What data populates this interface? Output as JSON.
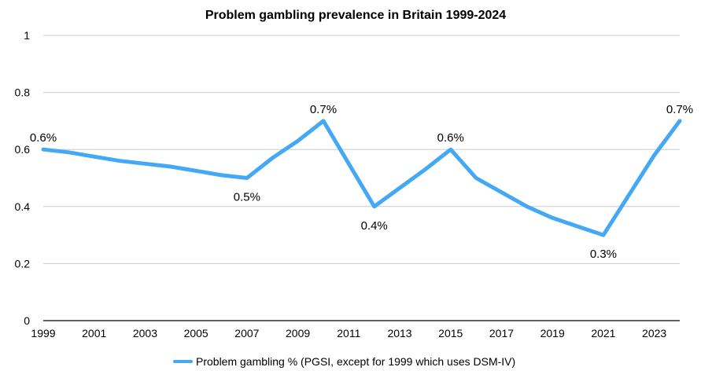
{
  "chart_data": {
    "type": "line",
    "title": "Problem gambling prevalence in Britain 1999-2024",
    "xlabel": "",
    "ylabel": "",
    "xlim": [
      1999,
      2024
    ],
    "ylim": [
      0,
      1
    ],
    "y_ticks": [
      "0",
      "0.2",
      "0.4",
      "0.6",
      "0.8",
      "1"
    ],
    "x_ticks": [
      "1999",
      "2001",
      "2003",
      "2005",
      "2007",
      "2009",
      "2011",
      "2013",
      "2015",
      "2017",
      "2019",
      "2021",
      "2023"
    ],
    "grid": true,
    "legend_position": "bottom",
    "series": [
      {
        "name": "Problem gambling % (PGSI, except for 1999 which uses DSM-IV)",
        "color": "#45a8f5",
        "x": [
          1999,
          2000,
          2001,
          2002,
          2003,
          2004,
          2005,
          2006,
          2007,
          2008,
          2009,
          2010,
          2011,
          2012,
          2013,
          2014,
          2015,
          2016,
          2017,
          2018,
          2019,
          2020,
          2021,
          2022,
          2023,
          2024
        ],
        "y": [
          0.6,
          0.59,
          0.575,
          0.56,
          0.55,
          0.54,
          0.525,
          0.51,
          0.5,
          0.57,
          0.63,
          0.7,
          0.55,
          0.4,
          0.465,
          0.53,
          0.6,
          0.5,
          0.45,
          0.4,
          0.36,
          0.33,
          0.3,
          0.44,
          0.58,
          0.7
        ]
      }
    ],
    "data_labels": [
      {
        "x": 1999,
        "y": 0.6,
        "text": "0.6%",
        "position": "above"
      },
      {
        "x": 2007,
        "y": 0.5,
        "text": "0.5%",
        "position": "below"
      },
      {
        "x": 2010,
        "y": 0.7,
        "text": "0.7%",
        "position": "above"
      },
      {
        "x": 2012,
        "y": 0.4,
        "text": "0.4%",
        "position": "below"
      },
      {
        "x": 2015,
        "y": 0.6,
        "text": "0.6%",
        "position": "above"
      },
      {
        "x": 2021,
        "y": 0.3,
        "text": "0.3%",
        "position": "below"
      },
      {
        "x": 2024,
        "y": 0.7,
        "text": "0.7%",
        "position": "above"
      }
    ]
  }
}
